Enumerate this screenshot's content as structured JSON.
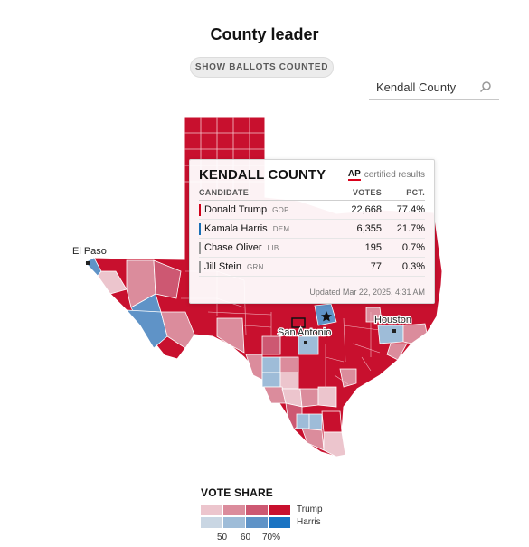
{
  "header": {
    "title": "County leader",
    "ballots_button": "SHOW BALLOTS COUNTED"
  },
  "search": {
    "value": "Kendall County",
    "icon": "search-icon"
  },
  "map": {
    "city_labels": {
      "el_paso": "El Paso",
      "san_antonio": "San Antonio",
      "houston": "Houston"
    }
  },
  "tooltip": {
    "county": "KENDALL COUNTY",
    "ap_logo": "AP",
    "certified": "certified results",
    "columns": {
      "candidate": "CANDIDATE",
      "votes": "VOTES",
      "pct": "PCT."
    },
    "candidates": [
      {
        "name": "Donald Trump",
        "party": "GOP",
        "votes": "22,668",
        "pct": "77.4%",
        "color": "#d0021b"
      },
      {
        "name": "Kamala Harris",
        "party": "DEM",
        "votes": "6,355",
        "pct": "21.7%",
        "color": "#1a6fb5"
      },
      {
        "name": "Chase Oliver",
        "party": "LIB",
        "votes": "195",
        "pct": "0.7%",
        "color": "#9a9a9a"
      },
      {
        "name": "Jill Stein",
        "party": "GRN",
        "votes": "77",
        "pct": "0.3%",
        "color": "#9a9a9a"
      }
    ],
    "updated": "Updated Mar 22, 2025, 4:31 AM"
  },
  "legend": {
    "title": "VOTE SHARE",
    "trump_label": "Trump",
    "harris_label": "Harris",
    "ticks": [
      "50",
      "60",
      "70%"
    ],
    "trump_colors": [
      "#ecc5cd",
      "#db8c9c",
      "#cd5872",
      "#c8102e"
    ],
    "harris_colors": [
      "#c9d6e3",
      "#9ebcd8",
      "#5f93c7",
      "#1a73c2"
    ]
  },
  "colors": {
    "gop": "#c8102e",
    "dem": "#1a73c2"
  }
}
